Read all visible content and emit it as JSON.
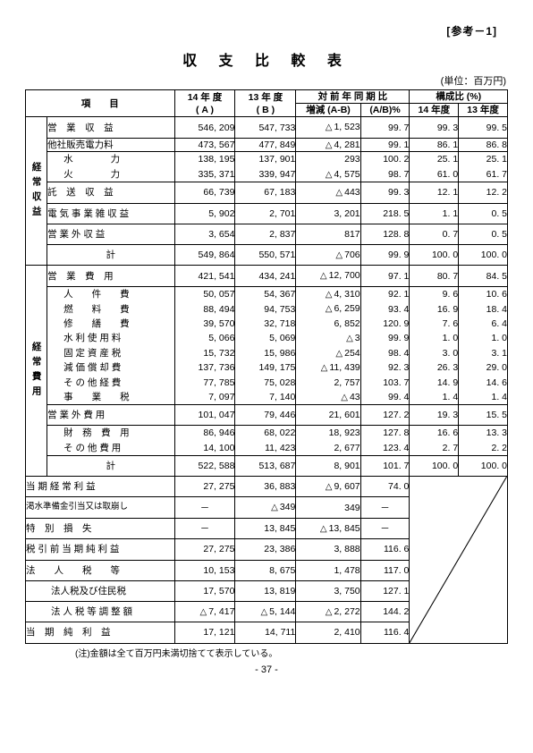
{
  "reference": "[参考－1]",
  "title": "収 支 比 較 表",
  "unit": "(単位：百万円)",
  "header": {
    "item": "項　　目",
    "y14": "14 年 度\n( A )",
    "y13": "13 年 度\n( B )",
    "comp_group": "対 前 年 同 期 比",
    "ratio_group": "構成比 (%)",
    "delta": "増減 (A-B)",
    "ab": "(A/B)%",
    "r14": "14 年度",
    "r13": "13 年度"
  },
  "side1": "経常収益",
  "side2": "経常費用",
  "rows1": [
    {
      "label": "営　業　収　益",
      "a": "546, 209",
      "b": "547, 733",
      "d": "1, 523",
      "tri": true,
      "ab": "99. 7",
      "r14": "99. 3",
      "r13": "99. 5",
      "cls": "sum"
    },
    {
      "label": "他社販売電力料",
      "a": "473, 567",
      "b": "477, 849",
      "d": "4, 281",
      "tri": true,
      "ab": "99. 1",
      "r14": "86. 1",
      "r13": "86. 8"
    },
    {
      "label": "水　　　　力",
      "indent": true,
      "a": "138, 195",
      "b": "137, 901",
      "d": "293",
      "tri": false,
      "ab": "100. 2",
      "r14": "25. 1",
      "r13": "25. 1",
      "dense": true
    },
    {
      "label": "火　　　　力",
      "indent": true,
      "a": "335, 371",
      "b": "339, 947",
      "d": "4, 575",
      "tri": true,
      "ab": "98. 7",
      "r14": "61. 0",
      "r13": "61. 7",
      "dense": true
    },
    {
      "label": "託　送　収　益",
      "a": "66, 739",
      "b": "67, 183",
      "d": "443",
      "tri": true,
      "ab": "99. 3",
      "r14": "12. 1",
      "r13": "12. 2",
      "cls": "sum"
    },
    {
      "label": "電 気 事 業 雑 収 益",
      "a": "5, 902",
      "b": "2, 701",
      "d": "3, 201",
      "tri": false,
      "ab": "218. 5",
      "r14": "1. 1",
      "r13": "0. 5",
      "cls": "sum"
    },
    {
      "label": "営 業 外 収 益",
      "a": "3, 654",
      "b": "2, 837",
      "d": "817",
      "tri": false,
      "ab": "128. 8",
      "r14": "0. 7",
      "r13": "0. 5",
      "cls": "sum"
    },
    {
      "label": "計",
      "center": true,
      "a": "549, 864",
      "b": "550, 571",
      "d": "706",
      "tri": true,
      "ab": "99. 9",
      "r14": "100. 0",
      "r13": "100. 0",
      "cls": "sum"
    }
  ],
  "rows2": [
    {
      "label": "営　業　費　用",
      "a": "421, 541",
      "b": "434, 241",
      "d": "12, 700",
      "tri": true,
      "ab": "97. 1",
      "r14": "80. 7",
      "r13": "84. 5",
      "cls": "sum"
    },
    {
      "label": "人　　件　　費",
      "indent": true,
      "a": "50, 057",
      "b": "54, 367",
      "d": "4, 310",
      "tri": true,
      "ab": "92. 1",
      "r14": "9. 6",
      "r13": "10. 6",
      "dense": true
    },
    {
      "label": "燃　　料　　費",
      "indent": true,
      "a": "88, 494",
      "b": "94, 753",
      "d": "6, 259",
      "tri": true,
      "ab": "93. 4",
      "r14": "16. 9",
      "r13": "18. 4",
      "dense": true
    },
    {
      "label": "修　　繕　　費",
      "indent": true,
      "a": "39, 570",
      "b": "32, 718",
      "d": "6, 852",
      "tri": false,
      "ab": "120. 9",
      "r14": "7. 6",
      "r13": "6. 4",
      "dense": true
    },
    {
      "label": "水 利 使 用 料",
      "indent": true,
      "a": "5, 066",
      "b": "5, 069",
      "d": "3",
      "tri": true,
      "ab": "99. 9",
      "r14": "1. 0",
      "r13": "1. 0",
      "dense": true
    },
    {
      "label": "固 定 資 産 税",
      "indent": true,
      "a": "15, 732",
      "b": "15, 986",
      "d": "254",
      "tri": true,
      "ab": "98. 4",
      "r14": "3. 0",
      "r13": "3. 1",
      "dense": true
    },
    {
      "label": "減 価 償 却 費",
      "indent": true,
      "a": "137, 736",
      "b": "149, 175",
      "d": "11, 439",
      "tri": true,
      "ab": "92. 3",
      "r14": "26. 3",
      "r13": "29. 0",
      "dense": true
    },
    {
      "label": "そ の 他 経 費",
      "indent": true,
      "a": "77, 785",
      "b": "75, 028",
      "d": "2, 757",
      "tri": false,
      "ab": "103. 7",
      "r14": "14. 9",
      "r13": "14. 6",
      "dense": true
    },
    {
      "label": "事　　業　　税",
      "indent": true,
      "a": "7, 097",
      "b": "7, 140",
      "d": "43",
      "tri": true,
      "ab": "99. 4",
      "r14": "1. 4",
      "r13": "1. 4",
      "dense": true
    },
    {
      "label": "営 業 外 費 用",
      "a": "101, 047",
      "b": "79, 446",
      "d": "21, 601",
      "tri": false,
      "ab": "127. 2",
      "r14": "19. 3",
      "r13": "15. 5",
      "cls": "sum"
    },
    {
      "label": "財　務　費　用",
      "indent": true,
      "a": "86, 946",
      "b": "68, 022",
      "d": "18, 923",
      "tri": false,
      "ab": "127. 8",
      "r14": "16. 6",
      "r13": "13. 3",
      "dense": true
    },
    {
      "label": "そ の 他 費 用",
      "indent": true,
      "a": "14, 100",
      "b": "11, 423",
      "d": "2, 677",
      "tri": false,
      "ab": "123. 4",
      "r14": "2. 7",
      "r13": "2. 2",
      "dense": true
    },
    {
      "label": "計",
      "center": true,
      "a": "522, 588",
      "b": "513, 687",
      "d": "8, 901",
      "tri": false,
      "ab": "101. 7",
      "r14": "100. 0",
      "r13": "100. 0",
      "cls": "sum"
    }
  ],
  "rows3": [
    {
      "label": "当 期 経 常 利 益",
      "a": "27, 275",
      "b": "36, 883",
      "d": "9, 607",
      "tri": true,
      "ab": "74. 0",
      "cls": "sum"
    },
    {
      "label": "渇水準備金引当又は取崩し",
      "small": true,
      "a": "－",
      "ac": true,
      "b": "349",
      "btri": true,
      "d": "349",
      "tri": false,
      "ab": "－",
      "abc": true,
      "cls": "sum"
    },
    {
      "label": "特　別　損　失",
      "a": "－",
      "ac": true,
      "b": "13, 845",
      "d": "13, 845",
      "tri": true,
      "ab": "－",
      "abc": true,
      "cls": "sum"
    },
    {
      "label": "税 引 前 当 期 純 利 益",
      "a": "27, 275",
      "b": "23, 386",
      "d": "3, 888",
      "tri": false,
      "ab": "116. 6",
      "cls": "sum"
    },
    {
      "label": "法　　人　　税　　等",
      "a": "10, 153",
      "b": "8, 675",
      "d": "1, 478",
      "tri": false,
      "ab": "117. 0",
      "cls": "sum"
    },
    {
      "label": "法人税及び住民税",
      "indent2": true,
      "a": "17, 570",
      "b": "13, 819",
      "d": "3, 750",
      "tri": false,
      "ab": "127. 1",
      "cls": "sum"
    },
    {
      "label": "法 人 税 等 調 整 額",
      "indent2": true,
      "a": "7, 417",
      "atri": true,
      "b": "5, 144",
      "btri": true,
      "d": "2, 272",
      "tri": true,
      "ab": "144. 2",
      "cls": "sum"
    },
    {
      "label": "当　期　純　利　益",
      "a": "17, 121",
      "b": "14, 711",
      "d": "2, 410",
      "tri": false,
      "ab": "116. 4",
      "cls": "sum"
    }
  ],
  "footnote": "(注)金額は全て百万円未満切捨てて表示している。",
  "pageno": "- 37 -"
}
